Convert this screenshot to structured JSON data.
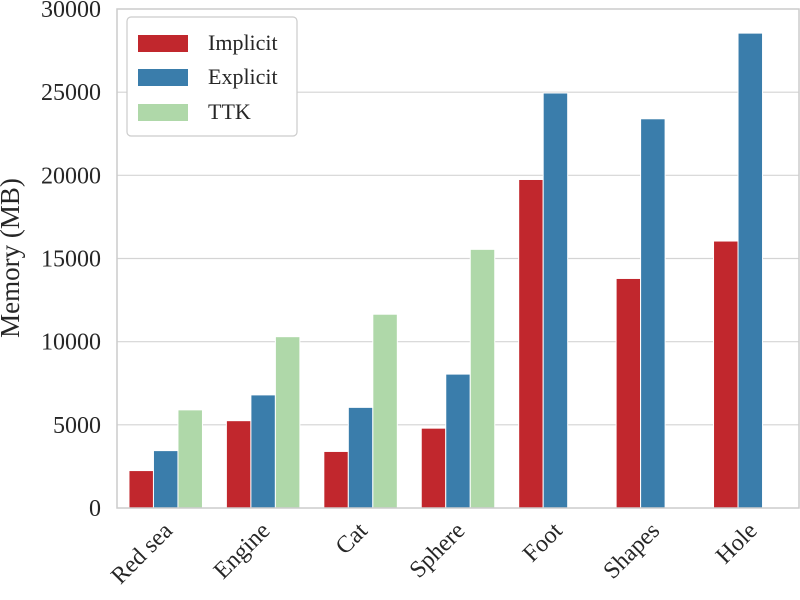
{
  "chart_data": {
    "type": "bar",
    "title": "",
    "xlabel": "",
    "ylabel": "Memory (MB)",
    "ylim": [
      0,
      30000
    ],
    "yticks": [
      0,
      5000,
      10000,
      15000,
      20000,
      25000,
      30000
    ],
    "grid": "horizontal",
    "legend_position": "top-left",
    "categories": [
      "Red sea",
      "Engine",
      "Cat",
      "Sphere",
      "Foot",
      "Shapes",
      "Hole"
    ],
    "series": [
      {
        "name": "Implicit",
        "color": "#c1272d",
        "values": [
          2250,
          5250,
          3400,
          4800,
          19750,
          13800,
          16050
        ]
      },
      {
        "name": "Explicit",
        "color": "#3a7dab",
        "values": [
          3450,
          6800,
          6050,
          8050,
          24950,
          23400,
          28550
        ]
      },
      {
        "name": "TTK",
        "color": "#afd8a9",
        "values": [
          5900,
          10300,
          11650,
          15550,
          null,
          null,
          null
        ]
      }
    ]
  }
}
